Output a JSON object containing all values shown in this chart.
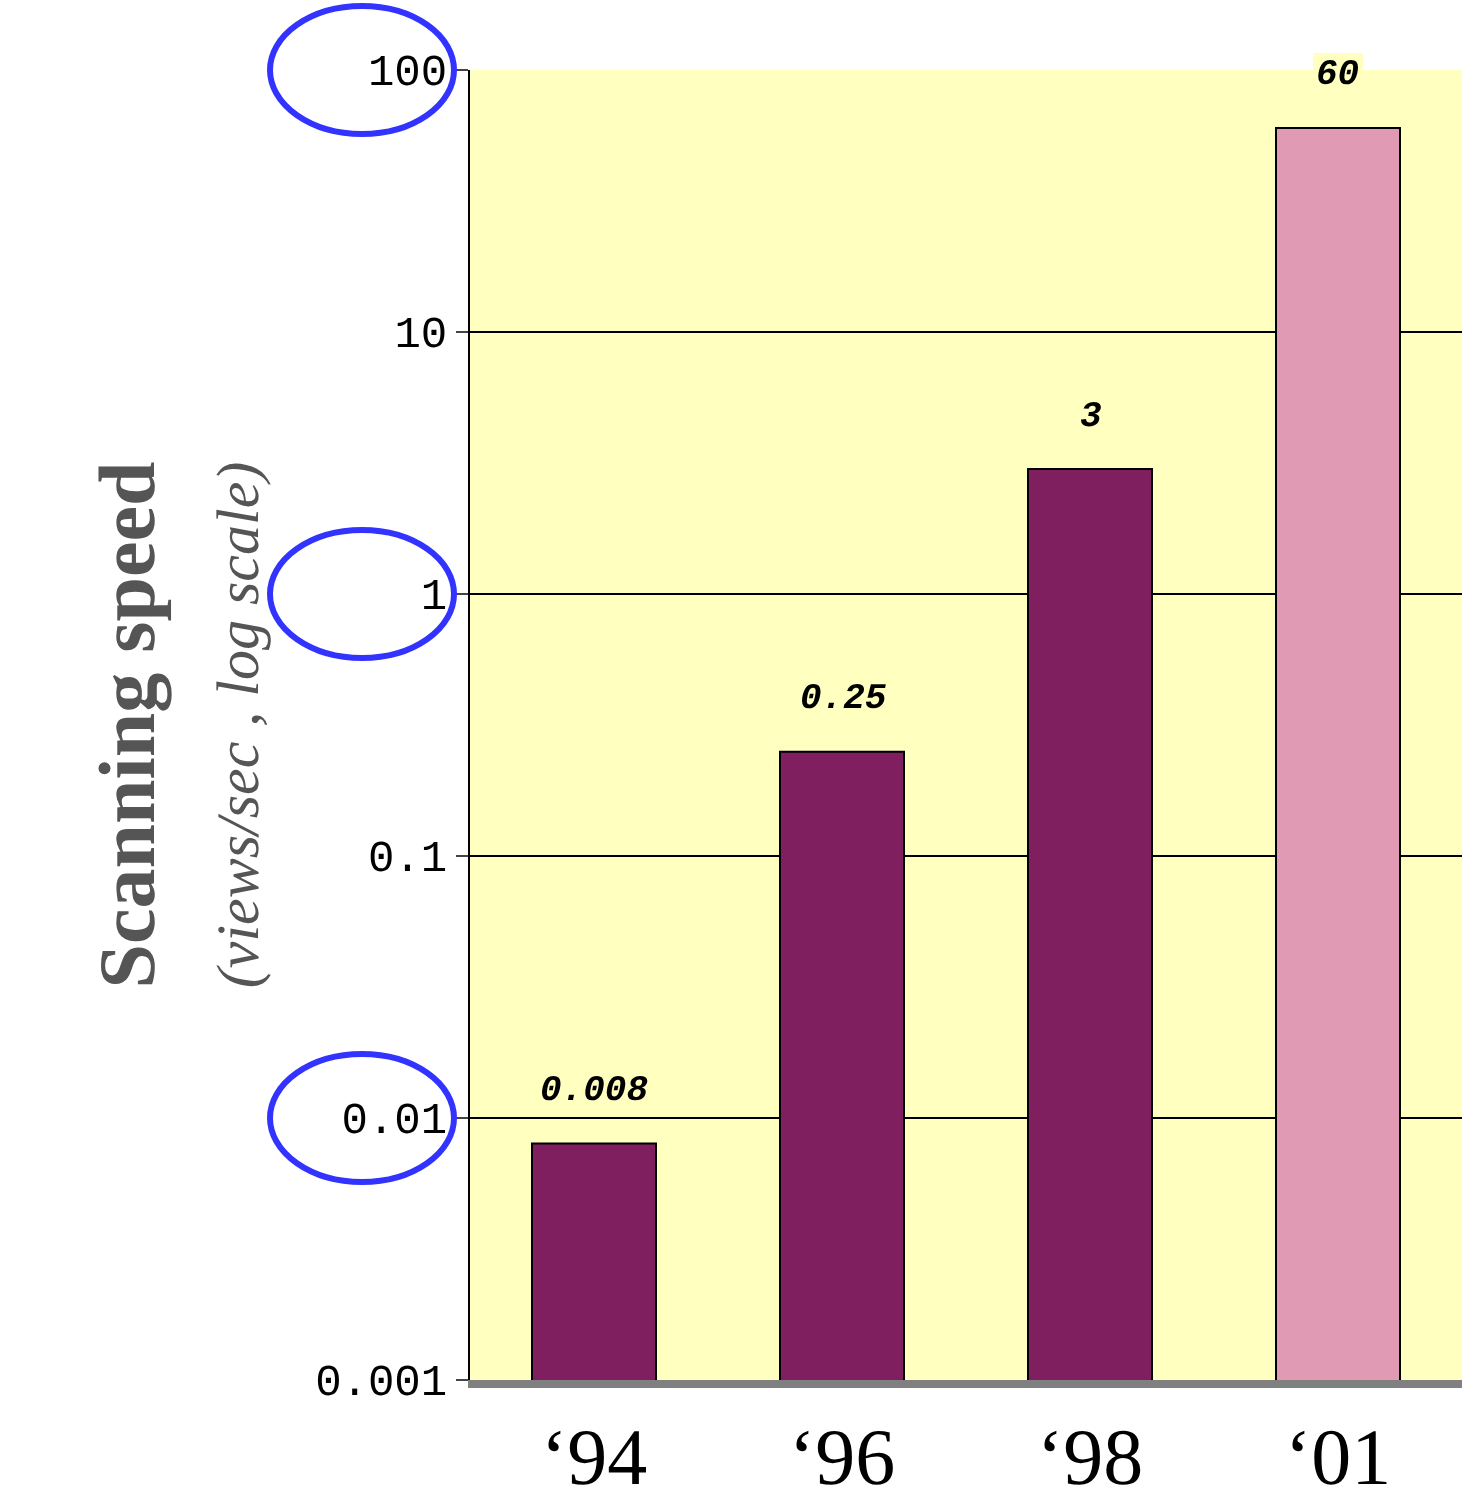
{
  "chart_data": {
    "type": "bar",
    "ylabel": "Scanning speed\n(views/sec , log scale)",
    "categories": [
      "‘94",
      "‘96",
      "‘98",
      "‘01"
    ],
    "values": [
      0.008,
      0.25,
      3,
      60
    ],
    "colors": [
      "#7f1f5f",
      "#7f1f5f",
      "#7f1f5f",
      "#e09ab4"
    ],
    "log": true,
    "ylim": [
      0.001,
      100
    ],
    "yticks": [
      0.001,
      0.01,
      0.1,
      1,
      10,
      100
    ],
    "grid": "y",
    "data_labels": true
  }
}
